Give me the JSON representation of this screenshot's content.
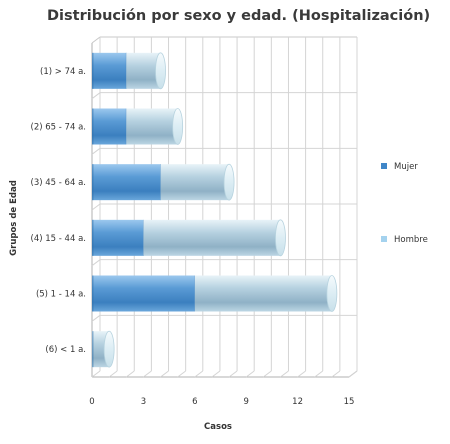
{
  "chart_data": {
    "type": "bar",
    "orientation": "horizontal",
    "stacked": true,
    "three_d": true,
    "title": "Distribución por sexo y edad. (Hospitalización)",
    "xlabel": "Casos",
    "ylabel": "Grupos de Edad",
    "categories": [
      "(1) > 74 a.",
      "(2) 65 - 74 a.",
      "(3) 45 - 64 a.",
      "(4) 15 - 44 a.",
      "(5) 1 - 14 a.",
      "(6) < 1 a."
    ],
    "series": [
      {
        "name": "Mujer",
        "values": [
          2,
          2,
          4,
          3,
          6,
          0
        ],
        "color": "#4a8fcc"
      },
      {
        "name": "Hombre",
        "values": [
          2,
          3,
          4,
          8,
          8,
          1
        ],
        "color": "#a6c6da"
      }
    ],
    "xlim": [
      0,
      15
    ],
    "xticks": [
      "0",
      "3",
      "6",
      "9",
      "12",
      "15"
    ],
    "grid": true,
    "legend_position": "right"
  }
}
